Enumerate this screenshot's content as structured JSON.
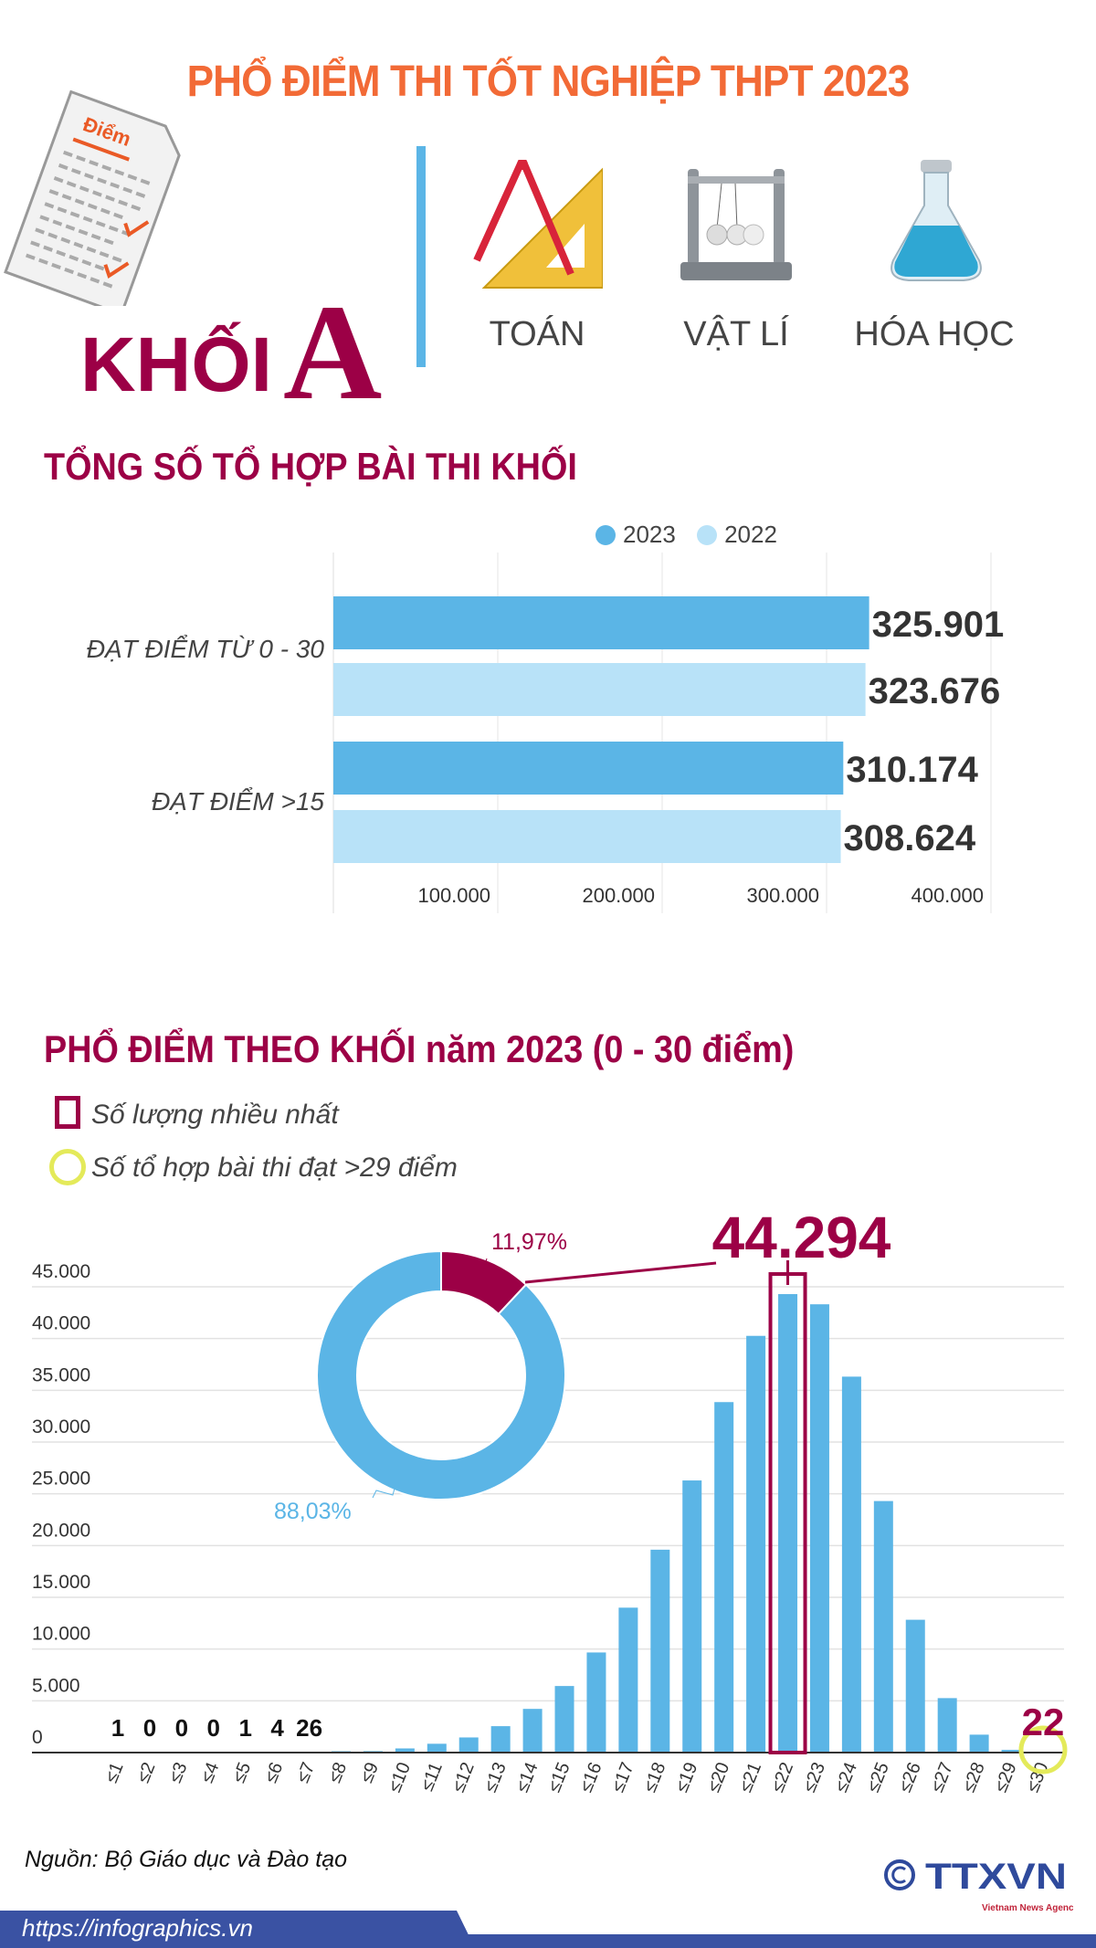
{
  "header": {
    "title": "PHỔ ĐIỂM THI TỐT NGHIỆP THPT 2023",
    "doc_icon_text": "Điểm",
    "block_prefix": "KHỐI",
    "block_letter": "A",
    "subjects": [
      {
        "label": "TOÁN",
        "icon": "compass-ruler-icon"
      },
      {
        "label": "VẬT LÍ",
        "icon": "newton-cradle-icon"
      },
      {
        "label": "HÓA HỌC",
        "icon": "flask-icon"
      }
    ]
  },
  "colors": {
    "title": "#f26a36",
    "accent": "#9c0046",
    "bar2023": "#5bb5e6",
    "bar2022": "#b8e2f8",
    "highlight_circle": "#e4ea5a"
  },
  "chart_data": [
    {
      "type": "bar",
      "orientation": "horizontal",
      "title": "TỔNG SỐ TỔ HỢP BÀI THI KHỐI",
      "categories": [
        "ĐẠT ĐIỂM TỪ 0 - 30",
        "ĐẠT ĐIỂM >15"
      ],
      "series": [
        {
          "name": "2023",
          "values": [
            325901,
            310174
          ],
          "labels": [
            "325.901",
            "310.174"
          ]
        },
        {
          "name": "2022",
          "values": [
            323676,
            308624
          ],
          "labels": [
            "323.676",
            "308.624"
          ]
        }
      ],
      "xlim": [
        0,
        400000
      ],
      "ticks": [
        100000,
        200000,
        300000,
        400000
      ],
      "tick_labels": [
        "100.000",
        "200.000",
        "300.000",
        "400.000"
      ],
      "grid": true,
      "legend": "top"
    },
    {
      "type": "bar",
      "title": "PHỔ ĐIỂM THEO KHỐI năm 2023 (0 - 30 điểm)",
      "legend_items": [
        {
          "label": "Số lượng nhiều nhất",
          "marker": "square"
        },
        {
          "label": "Số tổ hợp bài thi đạt >29 điểm",
          "marker": "circle"
        }
      ],
      "categories": [
        "≤1",
        "≤2",
        "≤3",
        "≤4",
        "≤5",
        "≤6",
        "≤7",
        "≤8",
        "≤9",
        "≤10",
        "≤11",
        "≤12",
        "≤13",
        "≤14",
        "≤15",
        "≤16",
        "≤17",
        "≤18",
        "≤19",
        "≤20",
        "≤21",
        "≤22",
        "≤23",
        "≤24",
        "≤25",
        "≤26",
        "≤27",
        "≤28",
        "≤29",
        "≤30"
      ],
      "values": [
        1,
        0,
        0,
        0,
        1,
        4,
        26,
        130,
        140,
        400,
        850,
        1460,
        2550,
        4220,
        6430,
        9670,
        14000,
        19600,
        26290,
        33860,
        40260,
        44294,
        43310,
        36320,
        24300,
        12830,
        5260,
        1730,
        260,
        22
      ],
      "value_labels": {
        "0": "1",
        "1": "0",
        "2": "0",
        "3": "0",
        "4": "1",
        "5": "4",
        "6": "26"
      },
      "max_label": "44.294",
      "max_index": 21,
      "top_label": "22",
      "top_index": 29,
      "ylim": [
        0,
        45000
      ],
      "yticks": [
        0,
        5000,
        10000,
        15000,
        20000,
        25000,
        30000,
        35000,
        40000,
        45000
      ],
      "ytick_labels": [
        "0",
        "5.000",
        "10.000",
        "15.000",
        "20.000",
        "25.000",
        "30.000",
        "35.000",
        "40.000",
        "45.000"
      ],
      "grid": true
    },
    {
      "type": "pie",
      "donut": true,
      "values": [
        11.97,
        88.03
      ],
      "labels": [
        "11,97%",
        "88,03%"
      ],
      "colors": [
        "#9c0046",
        "#5bb5e6"
      ]
    }
  ],
  "footer": {
    "source": "Nguồn: Bộ Giáo dục và Đào tạo",
    "url": "https://infographics.vn",
    "logo_text": "TTXVN",
    "logo_sub": "Vietnam News Agency"
  }
}
